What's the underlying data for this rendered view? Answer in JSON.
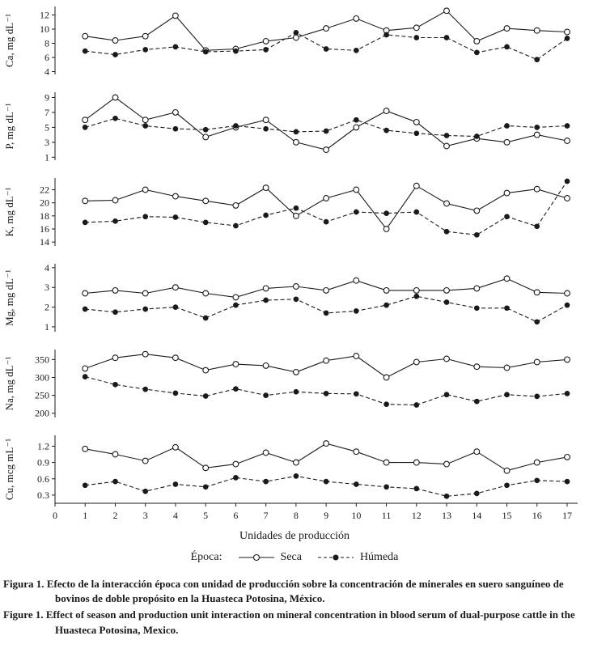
{
  "figure": {
    "xlabel": "Unidades de producción",
    "legend": {
      "title": "Época:",
      "seca": "Seca",
      "humeda": "Húmeda"
    },
    "caption_es_label": "Figura 1.",
    "caption_es": "Efecto de la interacción época con unidad de producción sobre la concentración de minerales en suero sanguíneo de bovinos de doble propósito en la Huasteca Potosina, México.",
    "caption_en_label": "Figure 1.",
    "caption_en": "Effect of season and production unit interaction on mineral concentration in blood serum of dual-purpose cattle in the Huasteca Potosina, Mexico."
  },
  "chart_data": {
    "type": "line",
    "x": [
      1,
      2,
      3,
      4,
      5,
      6,
      7,
      8,
      9,
      10,
      11,
      12,
      13,
      14,
      15,
      16,
      17
    ],
    "x_ticks": [
      0,
      1,
      2,
      3,
      4,
      5,
      6,
      7,
      8,
      9,
      10,
      11,
      12,
      13,
      14,
      15,
      16,
      17
    ],
    "xlabel": "Unidades de producción",
    "legend_position": "bottom",
    "grid": false,
    "series_defs": [
      {
        "key": "seca",
        "name": "Seca",
        "line": "solid",
        "marker": "open-circle"
      },
      {
        "key": "humeda",
        "name": "Húmeda",
        "line": "dashed",
        "marker": "filled-circle"
      }
    ],
    "panels": [
      {
        "id": "ca",
        "ylabel": "Ca, mg dL⁻¹",
        "yticks": [
          4,
          6,
          8,
          10,
          12
        ],
        "ylim": [
          3.6,
          13.2
        ],
        "seca": [
          9.0,
          8.4,
          9.0,
          11.9,
          7.0,
          7.2,
          8.3,
          8.8,
          10.1,
          11.5,
          9.8,
          10.2,
          12.6,
          8.3,
          10.1,
          9.8,
          9.6
        ],
        "humeda": [
          6.9,
          6.4,
          7.1,
          7.5,
          6.8,
          6.9,
          7.1,
          9.5,
          7.2,
          7.0,
          9.2,
          8.8,
          8.8,
          6.7,
          7.5,
          5.7,
          8.7
        ]
      },
      {
        "id": "p",
        "ylabel": "P, mg dL⁻¹",
        "yticks": [
          1,
          3,
          5,
          7,
          9
        ],
        "ylim": [
          0.6,
          9.7
        ],
        "seca": [
          6.0,
          9.0,
          6.0,
          7.0,
          3.7,
          5.0,
          6.0,
          3.0,
          2.0,
          5.0,
          7.2,
          5.7,
          2.5,
          3.5,
          3.0,
          4.0,
          3.2
        ],
        "humeda": [
          5.0,
          6.2,
          5.2,
          4.8,
          4.7,
          5.2,
          4.8,
          4.4,
          4.5,
          6.0,
          4.6,
          4.2,
          3.9,
          3.8,
          5.2,
          5.0,
          5.2
        ]
      },
      {
        "id": "k",
        "ylabel": "K, mg dL⁻¹",
        "yticks": [
          14,
          16,
          18,
          20,
          22
        ],
        "ylim": [
          13.4,
          23.8
        ],
        "seca": [
          20.3,
          20.4,
          22.0,
          21.0,
          20.3,
          19.6,
          22.3,
          18.0,
          20.7,
          22.0,
          16.0,
          22.6,
          19.9,
          18.8,
          21.5,
          22.1,
          20.7
        ],
        "humeda": [
          17.0,
          17.2,
          17.9,
          17.8,
          17.0,
          16.5,
          18.1,
          19.2,
          17.1,
          18.6,
          18.4,
          18.6,
          15.6,
          15.1,
          17.9,
          16.4,
          23.3
        ]
      },
      {
        "id": "mg",
        "ylabel": "Mg, mg dL⁻¹",
        "yticks": [
          1,
          2,
          3,
          4
        ],
        "ylim": [
          0.75,
          4.2
        ],
        "seca": [
          2.7,
          2.85,
          2.7,
          3.0,
          2.7,
          2.5,
          2.95,
          3.05,
          2.85,
          3.35,
          2.85,
          2.85,
          2.85,
          2.95,
          3.45,
          2.75,
          2.7
        ],
        "humeda": [
          1.9,
          1.75,
          1.9,
          2.0,
          1.45,
          2.1,
          2.35,
          2.4,
          1.7,
          1.8,
          2.1,
          2.55,
          2.25,
          1.95,
          1.95,
          1.25,
          2.1
        ]
      },
      {
        "id": "na",
        "ylabel": "Na, mg dL⁻¹",
        "yticks": [
          200,
          250,
          300,
          350
        ],
        "ylim": [
          188,
          378
        ],
        "seca": [
          325,
          355,
          365,
          355,
          320,
          337,
          333,
          315,
          347,
          360,
          300,
          343,
          352,
          330,
          327,
          343,
          350
        ],
        "humeda": [
          302,
          280,
          267,
          256,
          248,
          268,
          250,
          260,
          255,
          254,
          225,
          223,
          252,
          233,
          252,
          247,
          255
        ]
      },
      {
        "id": "cu",
        "ylabel": "Cu, mcg mL⁻¹",
        "yticks": [
          0.3,
          0.6,
          0.9,
          1.2
        ],
        "ylim": [
          0.15,
          1.4
        ],
        "seca": [
          1.15,
          1.05,
          0.93,
          1.18,
          0.8,
          0.87,
          1.08,
          0.9,
          1.25,
          1.1,
          0.9,
          0.9,
          0.87,
          1.1,
          0.75,
          0.9,
          1.0
        ],
        "humeda": [
          0.48,
          0.55,
          0.37,
          0.5,
          0.45,
          0.62,
          0.55,
          0.65,
          0.55,
          0.5,
          0.45,
          0.42,
          0.28,
          0.33,
          0.48,
          0.57,
          0.55
        ]
      }
    ]
  }
}
